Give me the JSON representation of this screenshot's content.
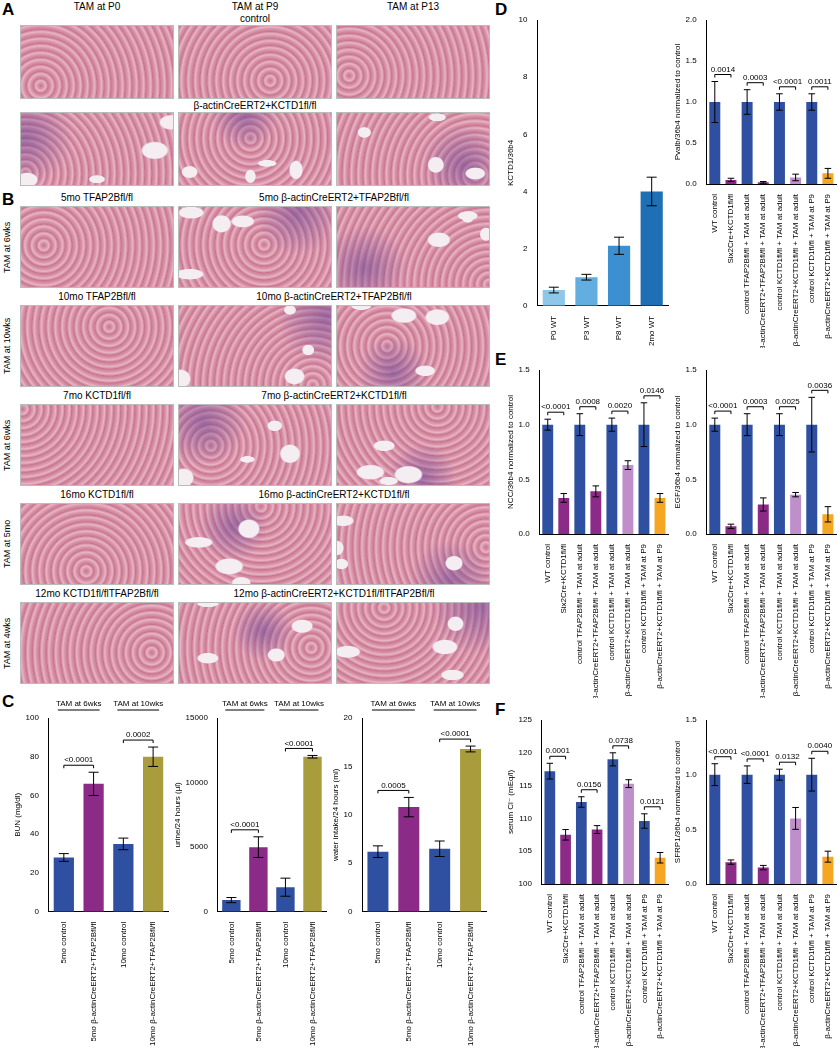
{
  "histology": {
    "A": {
      "panel": "A",
      "columns": [
        "TAM at P0",
        "TAM at P9",
        "TAM at P13"
      ],
      "rows": [
        "control",
        "β-actinCreERT2+KCTD1fl/fl"
      ]
    },
    "B": {
      "panel": "B",
      "rows": [
        {
          "control": "5mo TFAP2Bfl/fl",
          "mutant": "5mo β-actinCreERT2+TFAP2Bfl/fl",
          "treatment": "TAM at 6wks"
        },
        {
          "control": "10mo TFAP2Bfl/fl",
          "mutant": "10mo β-actinCreERT2+TFAP2Bfl/fl",
          "treatment": "TAM at 10wks"
        },
        {
          "control": "7mo KCTD1fl/fl",
          "mutant": "7mo β-actinCreERT2+KCTD1fl/fl",
          "treatment": "TAM at 6wks"
        },
        {
          "control": "16mo KCTD1fl/fl",
          "mutant": "16mo β-actinCreERT2+KCTD1fl/fl",
          "treatment": "TAM at 5mo"
        },
        {
          "control": "12mo KCTD1fl/flTFAP2Bfl/fl",
          "mutant": "12mo β-actinCreERT2+KCTD1fl/flTFAP2Bfl/fl",
          "treatment": "TAM at 4wks"
        }
      ]
    }
  },
  "chart_data": [
    {
      "panel": "C",
      "type": "bar",
      "y_label": "BUN (mg/dl)",
      "grid": false,
      "categories": [
        "5mo control",
        "5mo β-actinCreERT2+TFAP2Bfl/fl",
        "10mo control",
        "10mo β-actinCreERT2+TFAP2Bfl/fl"
      ],
      "values": [
        28,
        66,
        35,
        80
      ],
      "errors": [
        2,
        6,
        3,
        5
      ],
      "colors": [
        "#2f4fa0",
        "#8b2a87",
        "#2f4fa0",
        "#a89c3c"
      ],
      "ylim": [
        0,
        100
      ],
      "yticks": [
        0,
        20,
        40,
        60,
        80,
        100
      ],
      "comparisons": [
        {
          "between": [
            "5mo control",
            "5mo β-actinCreERT2+TFAP2Bfl/fl"
          ],
          "label": "<0.0001"
        },
        {
          "between": [
            "10mo control",
            "10mo β-actinCreERT2+TFAP2Bfl/fl"
          ],
          "label": "0.0002"
        }
      ],
      "groups": [
        {
          "label": "TAM at 6wks",
          "members": [
            "5mo control",
            "5mo β-actinCreERT2+TFAP2Bfl/fl"
          ]
        },
        {
          "label": "TAM at 10wks",
          "members": [
            "10mo control",
            "10mo β-actinCreERT2+TFAP2Bfl/fl"
          ]
        }
      ]
    },
    {
      "type": "bar",
      "y_label": "urine/24 hours (µl)",
      "grid": false,
      "categories": [
        "5mo control",
        "5mo β-actinCreERT2+TFAP2Bfl/fl",
        "10mo control",
        "10mo β-actinCreERT2+TFAP2Bfl/fl"
      ],
      "values": [
        900,
        5000,
        1900,
        12000
      ],
      "errors": [
        200,
        800,
        700,
        100
      ],
      "colors": [
        "#2f4fa0",
        "#8b2a87",
        "#2f4fa0",
        "#a89c3c"
      ],
      "ylim": [
        0,
        15000
      ],
      "yticks": [
        0,
        5000,
        10000,
        15000
      ],
      "comparisons": [
        {
          "between": [
            "5mo control",
            "5mo β-actinCreERT2+TFAP2Bfl/fl"
          ],
          "label": "<0.0001"
        },
        {
          "between": [
            "10mo control",
            "10mo β-actinCreERT2+TFAP2Bfl/fl"
          ],
          "label": "<0.0001"
        }
      ],
      "groups": [
        {
          "label": "TAM at 6wks",
          "members": [
            "5mo control",
            "5mo β-actinCreERT2+TFAP2Bfl/fl"
          ]
        },
        {
          "label": "TAM at 10wks",
          "members": [
            "10mo control",
            "10mo β-actinCreERT2+TFAP2Bfl/fl"
          ]
        }
      ]
    },
    {
      "type": "bar",
      "y_label": "water intake/24 hours (ml)",
      "grid": false,
      "categories": [
        "5mo control",
        "5mo β-actinCreERT2+TFAP2Bfl/fl",
        "10mo control",
        "10mo β-actinCreERT2+TFAP2Bfl/fl"
      ],
      "values": [
        6.2,
        10.8,
        6.5,
        16.8
      ],
      "errors": [
        0.6,
        1,
        0.8,
        0.3
      ],
      "colors": [
        "#2f4fa0",
        "#8b2a87",
        "#2f4fa0",
        "#a89c3c"
      ],
      "ylim": [
        0,
        20
      ],
      "yticks": [
        0,
        5,
        10,
        15,
        20
      ],
      "comparisons": [
        {
          "between": [
            "5mo control",
            "5mo β-actinCreERT2+TFAP2Bfl/fl"
          ],
          "label": "0.0005"
        },
        {
          "between": [
            "10mo control",
            "10mo β-actinCreERT2+TFAP2Bfl/fl"
          ],
          "label": "<0.0001"
        }
      ],
      "groups": [
        {
          "label": "TAM at 6wks",
          "members": [
            "5mo control",
            "5mo β-actinCreERT2+TFAP2Bfl/fl"
          ]
        },
        {
          "label": "TAM at 10wks",
          "members": [
            "10mo control",
            "10mo β-actinCreERT2+TFAP2Bfl/fl"
          ]
        }
      ]
    },
    {
      "panel": "D",
      "type": "bar",
      "y_label": "KCTD1/36b4",
      "grid": false,
      "categories": [
        "P0 WT",
        "P3 WT",
        "P8 WT",
        "2mo WT"
      ],
      "values": [
        0.55,
        1.0,
        2.1,
        4.0
      ],
      "errors": [
        0.1,
        0.1,
        0.3,
        0.5
      ],
      "colors": [
        "#8fc7ea",
        "#62aee0",
        "#3c8fd0",
        "#1f6fb5"
      ],
      "ylim": [
        0,
        10
      ],
      "yticks": [
        0,
        2,
        4,
        6,
        8,
        10
      ]
    },
    {
      "type": "bar",
      "y_label": "Pvalb/36b4 normalized to control",
      "grid": false,
      "categories": [
        "WT control",
        "Six2Cre+KCTD1fl/fl",
        "control TFAP2Bfl/fl + TAM at adult",
        "β-actinCreERT2+TFAP2Bfl/fl + TAM at adult",
        "control KCTD1fl/fl + TAM at adult",
        "β-actinCreERT2+KCTD1fl/fl + TAM at adult",
        "control KCTD1fl/fl + TAM at P9",
        "β-actinCreERT2+KCTD1fl/fl + TAM at P9"
      ],
      "values": [
        1.0,
        0.05,
        1.0,
        0.02,
        1.0,
        0.08,
        1.0,
        0.13
      ],
      "errors": [
        0.25,
        0.02,
        0.15,
        0.01,
        0.1,
        0.04,
        0.1,
        0.06
      ],
      "colors": [
        "#2f4fa0",
        "#8b2a87",
        "#2f4fa0",
        "#8b2a87",
        "#2f4fa0",
        "#bf8fcc",
        "#2f4fa0",
        "#f5a623"
      ],
      "ylim": [
        0,
        2
      ],
      "yticks": [
        {
          "value": 0,
          "label": "0.0"
        },
        0.5,
        {
          "value": 1,
          "label": "1.0"
        },
        1.5,
        {
          "value": 2,
          "label": "2.0"
        }
      ],
      "comparisons": [
        {
          "between": [
            "WT control",
            "Six2Cre+KCTD1fl/fl"
          ],
          "label": "0.0014"
        },
        {
          "between": [
            "control TFAP2Bfl/fl + TAM at adult",
            "β-actinCreERT2+TFAP2Bfl/fl + TAM at adult"
          ],
          "label": "0.0003"
        },
        {
          "between": [
            "control KCTD1fl/fl + TAM at adult",
            "β-actinCreERT2+KCTD1fl/fl + TAM at adult"
          ],
          "label": "<0.0001"
        },
        {
          "between": [
            "control KCTD1fl/fl + TAM at P9",
            "β-actinCreERT2+KCTD1fl/fl + TAM at P9"
          ],
          "label": "0.0011"
        }
      ]
    },
    {
      "panel": "E",
      "type": "bar",
      "y_label": "NCC/36b4 normalized to control",
      "grid": false,
      "categories": [
        "WT control",
        "Six2Cre+KCTD1fl/fl",
        "control TFAP2Bfl/fl + TAM at adult",
        "β-actinCreERT2+TFAP2Bfl/fl + TAM at adult",
        "control KCTD1fl/fl + TAM at adult",
        "β-actinCreERT2+KCTD1fl/fl + TAM at adult",
        "control KCTD1fl/fl + TAM at P9",
        "β-actinCreERT2+KCTD1fl/fl + TAM at P9"
      ],
      "values": [
        1.0,
        0.33,
        1.0,
        0.39,
        1.0,
        0.63,
        1.0,
        0.33
      ],
      "errors": [
        0.05,
        0.04,
        0.1,
        0.05,
        0.06,
        0.04,
        0.2,
        0.04
      ],
      "colors": [
        "#2f4fa0",
        "#8b2a87",
        "#2f4fa0",
        "#8b2a87",
        "#2f4fa0",
        "#bf8fcc",
        "#2f4fa0",
        "#f5a623"
      ],
      "ylim": [
        0,
        1.5
      ],
      "yticks": [
        {
          "value": 0,
          "label": "0.0"
        },
        0.5,
        {
          "value": 1,
          "label": "1.0"
        },
        1.5
      ],
      "comparisons": [
        {
          "between": [
            "WT control",
            "Six2Cre+KCTD1fl/fl"
          ],
          "label": "<0.0001"
        },
        {
          "between": [
            "control TFAP2Bfl/fl + TAM at adult",
            "β-actinCreERT2+TFAP2Bfl/fl + TAM at adult"
          ],
          "label": "0.0008"
        },
        {
          "between": [
            "control KCTD1fl/fl + TAM at adult",
            "β-actinCreERT2+KCTD1fl/fl + TAM at adult"
          ],
          "label": "0.0020"
        },
        {
          "between": [
            "control KCTD1fl/fl + TAM at P9",
            "β-actinCreERT2+KCTD1fl/fl + TAM at P9"
          ],
          "label": "0.0146"
        }
      ]
    },
    {
      "type": "bar",
      "y_label": "EGF/36b4 normalized to control",
      "grid": false,
      "categories": [
        "WT control",
        "Six2Cre+KCTD1fl/fl",
        "control TFAP2Bfl/fl + TAM at adult",
        "β-actinCreERT2+TFAP2Bfl/fl + TAM at adult",
        "control KCTD1fl/fl + TAM at adult",
        "β-actinCreERT2+KCTD1fl/fl + TAM at adult",
        "control KCTD1fl/fl + TAM at P9",
        "β-actinCreERT2+KCTD1fl/fl + TAM at P9"
      ],
      "values": [
        1.0,
        0.07,
        1.0,
        0.27,
        1.0,
        0.36,
        1.0,
        0.18
      ],
      "errors": [
        0.06,
        0.02,
        0.1,
        0.06,
        0.1,
        0.02,
        0.25,
        0.07
      ],
      "colors": [
        "#2f4fa0",
        "#8b2a87",
        "#2f4fa0",
        "#8b2a87",
        "#2f4fa0",
        "#bf8fcc",
        "#2f4fa0",
        "#f5a623"
      ],
      "ylim": [
        0,
        1.5
      ],
      "yticks": [
        {
          "value": 0,
          "label": "0.0"
        },
        0.5,
        {
          "value": 1,
          "label": "1.0"
        },
        1.5
      ],
      "comparisons": [
        {
          "between": [
            "WT control",
            "Six2Cre+KCTD1fl/fl"
          ],
          "label": "<0.0001"
        },
        {
          "between": [
            "control TFAP2Bfl/fl + TAM at adult",
            "β-actinCreERT2+TFAP2Bfl/fl + TAM at adult"
          ],
          "label": "0.0003"
        },
        {
          "between": [
            "control KCTD1fl/fl + TAM at adult",
            "β-actinCreERT2+KCTD1fl/fl + TAM at adult"
          ],
          "label": "0.0025"
        },
        {
          "between": [
            "control KCTD1fl/fl + TAM at P9",
            "β-actinCreERT2+KCTD1fl/fl + TAM at P9"
          ],
          "label": "0.0036"
        }
      ]
    },
    {
      "panel": "F",
      "type": "bar",
      "y_label": "serum Cl⁻ (mEq/l)",
      "grid": false,
      "categories": [
        "WT control",
        "Six2Cre+KCTD1fl/fl",
        "control TFAP2Bfl/fl + TAM at adult",
        "β-actinCreERT2+TFAP2Bfl/fl + TAM at adult",
        "control KCTD1fl/fl + TAM at adult",
        "β-actinCreERT2+KCTD1fl/fl + TAM at adult",
        "control KCTD1fl/fl + TAM at P9",
        "β-actinCreERT2+KCTD1fl/fl + TAM at P9"
      ],
      "values": [
        117.2,
        107.5,
        112.5,
        108.3,
        119,
        115.3,
        109.6,
        104
      ],
      "errors": [
        1.2,
        0.8,
        0.8,
        0.6,
        1,
        0.6,
        1.1,
        0.8
      ],
      "colors": [
        "#2f4fa0",
        "#8b2a87",
        "#2f4fa0",
        "#8b2a87",
        "#2f4fa0",
        "#bf8fcc",
        "#2f4fa0",
        "#f5a623"
      ],
      "ylim": [
        100,
        125
      ],
      "yticks": [
        100,
        105,
        110,
        115,
        120,
        125
      ],
      "comparisons": [
        {
          "between": [
            "WT control",
            "Six2Cre+KCTD1fl/fl"
          ],
          "label": "0.0001"
        },
        {
          "between": [
            "control TFAP2Bfl/fl + TAM at adult",
            "β-actinCreERT2+TFAP2Bfl/fl + TAM at adult"
          ],
          "label": "0.0156"
        },
        {
          "between": [
            "control KCTD1fl/fl + TAM at adult",
            "β-actinCreERT2+KCTD1fl/fl + TAM at adult"
          ],
          "label": "0.0738"
        },
        {
          "between": [
            "control KCTD1fl/fl + TAM at P9",
            "β-actinCreERT2+KCTD1fl/fl + TAM at P9"
          ],
          "label": "0.0121"
        }
      ]
    },
    {
      "type": "bar",
      "y_label": "SFRP1/36b4 normalized to control",
      "grid": false,
      "categories": [
        "WT control",
        "Six2Cre+KCTD1fl/fl",
        "control TFAP2Bfl/fl + TAM at adult",
        "β-actinCreERT2+TFAP2Bfl/fl + TAM at adult",
        "control KCTD1fl/fl + TAM at adult",
        "β-actinCreERT2+KCTD1fl/fl + TAM at adult",
        "control KCTD1fl/fl + TAM at P9",
        "β-actinCreERT2+KCTD1fl/fl + TAM at P9"
      ],
      "values": [
        1.0,
        0.2,
        1.0,
        0.15,
        1.0,
        0.6,
        1.0,
        0.25
      ],
      "errors": [
        0.1,
        0.02,
        0.08,
        0.02,
        0.05,
        0.1,
        0.15,
        0.05
      ],
      "colors": [
        "#2f4fa0",
        "#8b2a87",
        "#2f4fa0",
        "#8b2a87",
        "#2f4fa0",
        "#bf8fcc",
        "#2f4fa0",
        "#f5a623"
      ],
      "ylim": [
        0,
        1.5
      ],
      "yticks": [
        {
          "value": 0,
          "label": "0.0"
        },
        0.5,
        {
          "value": 1,
          "label": "1.0"
        },
        1.5
      ],
      "comparisons": [
        {
          "between": [
            "WT control",
            "Six2Cre+KCTD1fl/fl"
          ],
          "label": "<0.0001"
        },
        {
          "between": [
            "control TFAP2Bfl/fl + TAM at adult",
            "β-actinCreERT2+TFAP2Bfl/fl + TAM at adult"
          ],
          "label": "<0.0001"
        },
        {
          "between": [
            "control KCTD1fl/fl + TAM at adult",
            "β-actinCreERT2+KCTD1fl/fl + TAM at adult"
          ],
          "label": "0.0132"
        },
        {
          "between": [
            "control KCTD1fl/fl + TAM at P9",
            "β-actinCreERT2+KCTD1fl/fl + TAM at P9"
          ],
          "label": "0.0040"
        }
      ]
    }
  ]
}
